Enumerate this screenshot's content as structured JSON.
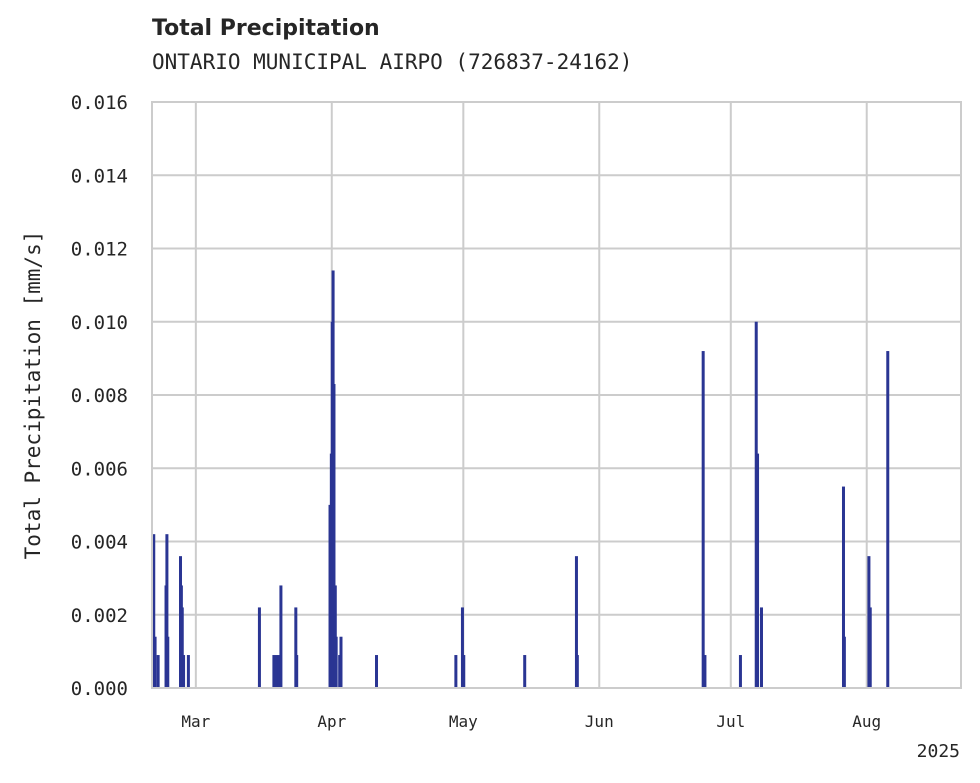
{
  "chart_data": {
    "type": "bar",
    "title": "Total Precipitation",
    "subtitle": "ONTARIO MUNICIPAL AIRPO (726837-24162)",
    "xlabel": "",
    "ylabel": "Total Precipitation [mm/s]",
    "year_label": "2025",
    "ylim": [
      0,
      0.016
    ],
    "yticks": [
      0.0,
      0.002,
      0.004,
      0.006,
      0.008,
      0.01,
      0.012,
      0.014,
      0.016
    ],
    "ytick_labels": [
      "0.000",
      "0.002",
      "0.004",
      "0.006",
      "0.008",
      "0.010",
      "0.012",
      "0.014",
      "0.016"
    ],
    "x_range_days": [
      0,
      184.5
    ],
    "x_origin_date": "2025-02-19",
    "xticks": [
      {
        "label": "Mar",
        "day": 10
      },
      {
        "label": "Apr",
        "day": 41
      },
      {
        "label": "May",
        "day": 71
      },
      {
        "label": "Jun",
        "day": 102
      },
      {
        "label": "Jul",
        "day": 132
      },
      {
        "label": "Aug",
        "day": 163
      }
    ],
    "grid": true,
    "color": "#2a3593",
    "series": [
      {
        "name": "Total Precipitation",
        "x_days": [
          0.4,
          0.7,
          1.4,
          3.2,
          3.4,
          3.6,
          6.5,
          6.7,
          6.9,
          7.2,
          8.3,
          24.5,
          27.8,
          28.4,
          29.0,
          29.4,
          32.8,
          33.0,
          40.6,
          40.9,
          41.1,
          41.3,
          41.5,
          41.8,
          42.0,
          42.8,
          43.1,
          51.2,
          69.3,
          70.8,
          71.1,
          85.0,
          96.8,
          97.0,
          125.7,
          126.1,
          134.2,
          137.8,
          138.1,
          139.0,
          157.7,
          157.9,
          163.5,
          163.8,
          167.8
        ],
        "values": [
          0.0042,
          0.0014,
          0.0009,
          0.0028,
          0.0042,
          0.0014,
          0.0036,
          0.0028,
          0.0022,
          0.0009,
          0.0009,
          0.0022,
          0.0009,
          0.0009,
          0.0009,
          0.0028,
          0.0022,
          0.0009,
          0.005,
          0.0064,
          0.01,
          0.0114,
          0.0083,
          0.0028,
          0.0014,
          0.0009,
          0.0014,
          0.0009,
          0.0009,
          0.0022,
          0.0009,
          0.0009,
          0.0036,
          0.0009,
          0.0092,
          0.0009,
          0.0009,
          0.01,
          0.0064,
          0.0022,
          0.0055,
          0.0014,
          0.0036,
          0.0022,
          0.0092
        ]
      }
    ]
  }
}
